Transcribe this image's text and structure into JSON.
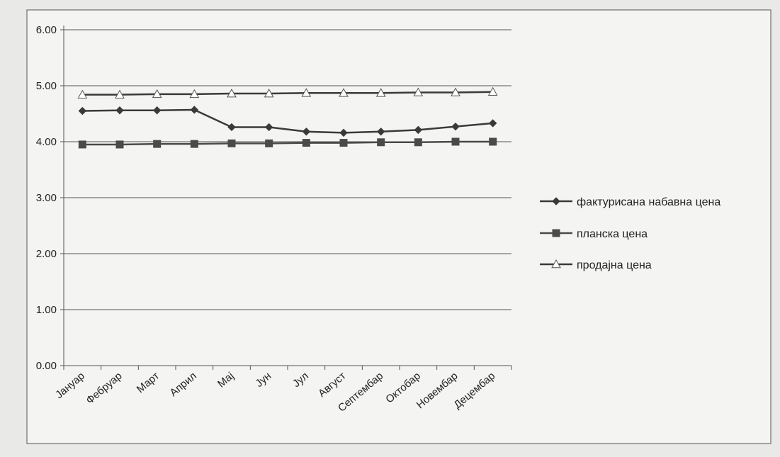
{
  "chart_data": {
    "type": "line",
    "categories": [
      "Јануар",
      "Фебруар",
      "Март",
      "Април",
      "Мај",
      "Јун",
      "Јул",
      "Август",
      "Септембар",
      "Октобар",
      "Новембар",
      "Децембар"
    ],
    "series": [
      {
        "name": "фактурисана набавна цена",
        "marker": "diamond",
        "color": "#3a3a3a",
        "values": [
          4.55,
          4.56,
          4.56,
          4.57,
          4.26,
          4.26,
          4.18,
          4.16,
          4.18,
          4.21,
          4.27,
          4.33
        ]
      },
      {
        "name": "планска цена",
        "marker": "square",
        "color": "#4a4a4a",
        "values": [
          3.95,
          3.95,
          3.96,
          3.96,
          3.97,
          3.97,
          3.98,
          3.98,
          3.99,
          3.99,
          4.0,
          4.0
        ]
      },
      {
        "name": "продајна цена",
        "marker": "triangle",
        "color": "#3a3a3a",
        "values": [
          4.84,
          4.84,
          4.85,
          4.85,
          4.86,
          4.86,
          4.87,
          4.87,
          4.87,
          4.88,
          4.88,
          4.89
        ]
      }
    ],
    "y_ticks": [
      "0.00",
      "1.00",
      "2.00",
      "3.00",
      "4.00",
      "5.00",
      "6.00"
    ],
    "ylim": [
      0,
      6
    ],
    "grid": true,
    "legend_position": "right",
    "title": "",
    "xlabel": "",
    "ylabel": ""
  }
}
